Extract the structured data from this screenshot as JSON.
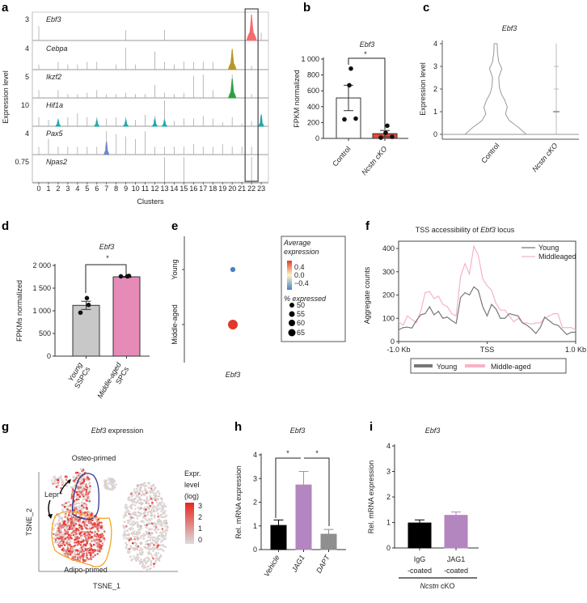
{
  "panel_labels": [
    "a",
    "b",
    "c",
    "d",
    "e",
    "f",
    "g",
    "h",
    "i"
  ],
  "chart_data": [
    {
      "panel": "a",
      "type": "violin",
      "xlabel": "Clusters",
      "ylabel": "Expression level",
      "clusters": [
        "0",
        "1",
        "2",
        "3",
        "4",
        "5",
        "6",
        "7",
        "8",
        "9",
        "10",
        "11",
        "12",
        "13",
        "14",
        "15",
        "16",
        "17",
        "18",
        "19",
        "20",
        "21",
        "22",
        "23"
      ],
      "highlight_cluster": 22,
      "genes": [
        {
          "name": "Ebf3",
          "ymax_label": "3",
          "color": "#f26d6d",
          "violins": [
            {
              "cluster": 22,
              "size": 1.0
            }
          ],
          "lines": [
            [
              0,
              0.55
            ],
            [
              9,
              0.4
            ],
            [
              13,
              0.4
            ],
            [
              22,
              1.0
            ],
            [
              23,
              0.3
            ]
          ]
        },
        {
          "name": "Cebpa",
          "ymax_label": "4",
          "color": "#b8962a",
          "violins": [
            {
              "cluster": 20,
              "size": 0.8
            }
          ],
          "lines": [
            [
              0,
              0.2
            ],
            [
              2,
              0.3
            ],
            [
              3,
              0.2
            ],
            [
              4,
              0.2
            ],
            [
              5,
              0.3
            ],
            [
              6,
              0.3
            ],
            [
              8,
              0.2
            ],
            [
              9,
              0.85
            ],
            [
              10,
              0.2
            ],
            [
              12,
              0.7
            ],
            [
              13,
              0.3
            ],
            [
              14,
              0.2
            ],
            [
              15,
              0.3
            ],
            [
              16,
              0.3
            ],
            [
              17,
              0.3
            ],
            [
              18,
              0.3
            ],
            [
              20,
              0.75
            ],
            [
              22,
              0.15
            ]
          ]
        },
        {
          "name": "Ikzf2",
          "ymax_label": "5",
          "color": "#2ea043",
          "violins": [
            {
              "cluster": 20,
              "size": 0.75
            }
          ],
          "lines": [
            [
              0,
              0.3
            ],
            [
              2,
              0.3
            ],
            [
              3,
              0.15
            ],
            [
              4,
              0.15
            ],
            [
              5,
              0.2
            ],
            [
              6,
              0.3
            ],
            [
              7,
              0.15
            ],
            [
              8,
              0.15
            ],
            [
              9,
              0.2
            ],
            [
              10,
              0.15
            ],
            [
              11,
              0.15
            ],
            [
              12,
              0.5
            ],
            [
              13,
              0.2
            ],
            [
              14,
              0.15
            ],
            [
              15,
              0.2
            ],
            [
              16,
              0.85
            ],
            [
              17,
              0.9
            ],
            [
              18,
              0.3
            ],
            [
              20,
              0.9
            ],
            [
              22,
              0.15
            ]
          ]
        },
        {
          "name": "Hif1a",
          "ymax_label": "10",
          "color": "#22a9a8",
          "violins": [
            {
              "cluster": 2,
              "size": 0.25
            },
            {
              "cluster": 6,
              "size": 0.25
            },
            {
              "cluster": 9,
              "size": 0.25
            },
            {
              "cluster": 12,
              "size": 0.3
            },
            {
              "cluster": 13,
              "size": 0.25
            },
            {
              "cluster": 23,
              "size": 0.45
            }
          ],
          "lines": [
            [
              0,
              0.35
            ],
            [
              1,
              0.25
            ],
            [
              2,
              0.3
            ],
            [
              3,
              0.35
            ],
            [
              4,
              0.5
            ],
            [
              5,
              0.35
            ],
            [
              6,
              0.35
            ],
            [
              7,
              0.3
            ],
            [
              8,
              0.35
            ],
            [
              9,
              0.35
            ],
            [
              10,
              0.25
            ],
            [
              11,
              0.45
            ],
            [
              12,
              0.4
            ],
            [
              13,
              1.0
            ],
            [
              14,
              0.2
            ],
            [
              15,
              0.3
            ],
            [
              16,
              0.3
            ],
            [
              17,
              0.4
            ],
            [
              18,
              0.3
            ],
            [
              19,
              0.15
            ],
            [
              20,
              0.35
            ],
            [
              21,
              0.1
            ],
            [
              22,
              0.2
            ],
            [
              23,
              0.3
            ]
          ]
        },
        {
          "name": "Pax5",
          "ymax_label": "4",
          "color": "#6f86c8",
          "violins": [
            {
              "cluster": 7,
              "size": 0.5
            }
          ],
          "lines": [
            [
              0,
              0.3
            ],
            [
              1,
              0.6
            ],
            [
              2,
              0.3
            ],
            [
              3,
              0.3
            ],
            [
              4,
              0.3
            ],
            [
              5,
              0.3
            ],
            [
              6,
              0.3
            ],
            [
              7,
              0.9
            ],
            [
              8,
              0.8
            ],
            [
              9,
              0.7
            ],
            [
              10,
              0.6
            ],
            [
              11,
              0.9
            ],
            [
              12,
              0.3
            ],
            [
              13,
              0.3
            ],
            [
              14,
              0.3
            ],
            [
              15,
              0.3
            ],
            [
              16,
              0.4
            ],
            [
              17,
              0.3
            ],
            [
              18,
              0.3
            ],
            [
              19,
              0.4
            ],
            [
              20,
              0.3
            ],
            [
              21,
              0.3
            ],
            [
              22,
              0.3
            ]
          ]
        },
        {
          "name": "Npas2",
          "ymax_label": "0.75",
          "color": "#999999",
          "violins": [],
          "lines": [
            [
              13,
              1.0
            ],
            [
              15,
              1.0
            ],
            [
              22,
              1.0
            ]
          ]
        }
      ]
    },
    {
      "panel": "b",
      "type": "bar",
      "title": "Ebf3",
      "ylabel": "FPKM normalized",
      "categories": [
        "Control",
        "Ncstn cKO"
      ],
      "values": [
        510,
        60
      ],
      "errors": [
        160,
        40
      ],
      "points": [
        [
          880,
          670,
          240,
          250
        ],
        [
          160,
          70,
          10,
          20
        ]
      ],
      "colors": [
        "#ffffff",
        "#e8483b"
      ],
      "ylim": [
        0,
        1000
      ],
      "yticks": [
        0,
        200,
        400,
        600,
        800,
        1000
      ],
      "ytick_labels": [
        "0",
        "200",
        "400",
        "600",
        "800",
        "1 000"
      ],
      "significance": "*"
    },
    {
      "panel": "c",
      "type": "violin",
      "title": "Ebf3",
      "ylabel": "Expression level",
      "categories": [
        "Control",
        "Ncstn cKO"
      ],
      "ylim": [
        0,
        4
      ],
      "yticks": [
        "0",
        "1",
        "2",
        "3",
        "4"
      ],
      "control_profile": [
        [
          0,
          1.0
        ],
        [
          0.3,
          0.75
        ],
        [
          0.6,
          0.45
        ],
        [
          0.9,
          0.32
        ],
        [
          1.2,
          0.38
        ],
        [
          1.5,
          0.3
        ],
        [
          1.8,
          0.18
        ],
        [
          2.1,
          0.12
        ],
        [
          2.5,
          0.1
        ],
        [
          2.9,
          0.2
        ],
        [
          3.2,
          0.1
        ],
        [
          3.6,
          0.06
        ],
        [
          4.0,
          0.05
        ]
      ]
    },
    {
      "panel": "d",
      "type": "bar",
      "title": "Ebf3",
      "ylabel": "FPKMs normalized",
      "categories": [
        "Young SSPCs",
        "Middle-aged SPCs"
      ],
      "category_lines": [
        [
          "Young",
          "SSPCs"
        ],
        [
          "Middle-aged",
          "SPCs"
        ]
      ],
      "values": [
        1120,
        1750
      ],
      "errors": [
        90,
        10
      ],
      "points": [
        [
          1280,
          1130,
          960
        ],
        [
          1760,
          1770,
          1760
        ]
      ],
      "colors": [
        "#c8c8c8",
        "#e68bb8"
      ],
      "ylim": [
        0,
        2000
      ],
      "yticks": [
        0,
        500,
        1000,
        1500,
        2000
      ],
      "ytick_labels": [
        "0",
        "500",
        "1 000",
        "1 500",
        "2 000"
      ],
      "significance": "*"
    },
    {
      "panel": "e",
      "type": "dot",
      "xlabel": "Ebf3",
      "categories": [
        "Young",
        "Middle-aged"
      ],
      "avg_expression": [
        -0.4,
        0.4
      ],
      "pct_expressed": [
        50,
        65
      ],
      "legend": {
        "color_title": [
          "Average",
          "expression"
        ],
        "color_ticks": [
          "0.4",
          "0.0",
          "−0.4"
        ],
        "size_title": "% expressed",
        "size_ticks": [
          "50",
          "55",
          "60",
          "65"
        ]
      }
    },
    {
      "panel": "f",
      "type": "line",
      "title_pre": "TSS accessibility of ",
      "title_gene": "Ebf3",
      "title_post": " locus",
      "ylabel": "Aggregate counts",
      "ylim": [
        0,
        400
      ],
      "yticks": [
        "0",
        "100",
        "200",
        "300",
        "400"
      ],
      "xlim": [
        -1,
        1
      ],
      "xtick_labels": [
        "-1.0 Kb",
        "TSS",
        "1.0 Kb"
      ],
      "x": [
        -1,
        -0.95,
        -0.9,
        -0.85,
        -0.8,
        -0.75,
        -0.7,
        -0.65,
        -0.6,
        -0.55,
        -0.5,
        -0.45,
        -0.4,
        -0.35,
        -0.3,
        -0.25,
        -0.2,
        -0.15,
        -0.1,
        -0.05,
        0,
        0.05,
        0.1,
        0.15,
        0.2,
        0.25,
        0.3,
        0.35,
        0.4,
        0.45,
        0.5,
        0.55,
        0.6,
        0.65,
        0.7,
        0.75,
        0.8,
        0.85,
        0.9,
        0.95,
        1
      ],
      "series": [
        {
          "name": "Young",
          "legend_inner": "Young",
          "color": "#777777",
          "values": [
            50,
            60,
            62,
            58,
            90,
            115,
            120,
            150,
            115,
            130,
            100,
            105,
            90,
            78,
            190,
            210,
            200,
            235,
            220,
            150,
            110,
            160,
            140,
            100,
            100,
            120,
            115,
            110,
            80,
            70,
            55,
            35,
            60,
            105,
            90,
            75,
            70,
            50,
            30,
            40,
            40
          ]
        },
        {
          "name": "Middle-aged",
          "legend_inner": "Middleaged",
          "color": "#f7b3c4",
          "values": [
            85,
            70,
            110,
            95,
            80,
            130,
            210,
            215,
            185,
            195,
            160,
            150,
            120,
            110,
            280,
            335,
            290,
            410,
            370,
            270,
            240,
            220,
            165,
            135,
            135,
            110,
            85,
            100,
            80,
            80,
            75,
            80,
            80,
            100,
            110,
            120,
            120,
            60,
            60,
            60,
            50
          ]
        }
      ]
    },
    {
      "panel": "g",
      "type": "scatter",
      "title_gene": "Ebf3",
      "title_post": " expression",
      "xlabel": "TSNE_1",
      "ylabel": "TSNE_2",
      "annotations": [
        "Osteo-primed",
        "Adipo-primed",
        "Lepr⁺"
      ],
      "legend_title": [
        "Expr.",
        "level",
        "(log)"
      ],
      "legend_ticks": [
        "3",
        "2",
        "1",
        "0"
      ],
      "outline_colors": {
        "osteo": "#2e3a8c",
        "adipo": "#f5a623"
      }
    },
    {
      "panel": "h",
      "type": "bar",
      "title": "Ebf3",
      "ylabel": "Rel. mRNA expression",
      "categories": [
        "Vehicle",
        "JAG1",
        "DAPT"
      ],
      "values": [
        1.02,
        2.73,
        0.65
      ],
      "errors": [
        0.23,
        0.57,
        0.2
      ],
      "colors": [
        "#000000",
        "#b386c0",
        "#8f8f8f"
      ],
      "ylim": [
        0,
        4
      ],
      "yticks": [
        "0",
        "1",
        "2",
        "3",
        "4"
      ],
      "significance": [
        "*",
        "*"
      ]
    },
    {
      "panel": "i",
      "type": "bar",
      "title": "Ebf3",
      "ylabel": "Rel. mRNA expression",
      "categories": [
        "IgG -coated",
        "JAG1 -coated"
      ],
      "category_lines": [
        [
          "IgG",
          "-coated"
        ],
        [
          "JAG1",
          "-coated"
        ]
      ],
      "group_label_gene": "Ncstn",
      "group_label_post": " cKO",
      "values": [
        0.98,
        1.28
      ],
      "errors": [
        0.12,
        0.13
      ],
      "colors": [
        "#000000",
        "#b386c0"
      ],
      "ylim": [
        0,
        4
      ],
      "yticks": [
        "0",
        "1",
        "2",
        "3",
        "4"
      ]
    }
  ]
}
